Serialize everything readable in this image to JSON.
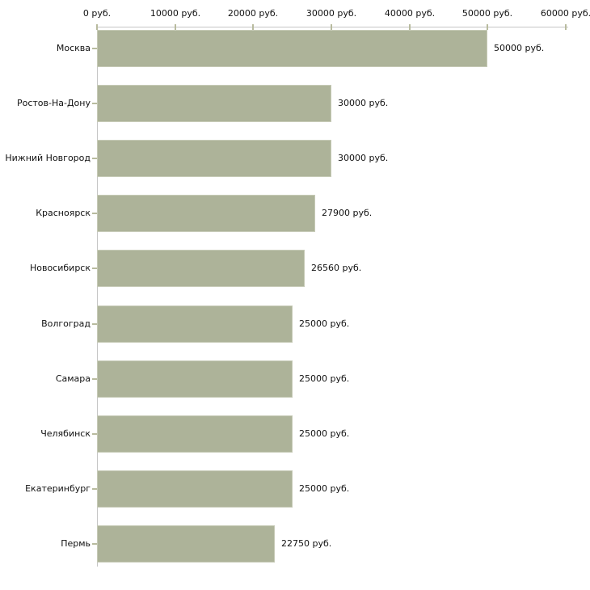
{
  "chart_data": {
    "type": "bar",
    "orientation": "horizontal",
    "title": "",
    "categories": [
      "Москва",
      "Ростов-На-Дону",
      "Нижний Новгород",
      "Красноярск",
      "Новосибирск",
      "Волгоград",
      "Самара",
      "Челябинск",
      "Екатеринбург",
      "Пермь"
    ],
    "values": [
      50000,
      30000,
      30000,
      27900,
      26560,
      25000,
      25000,
      25000,
      25000,
      22750
    ],
    "value_labels": [
      "50000 руб.",
      "30000 руб.",
      "30000 руб.",
      "27900 руб.",
      "26560 руб.",
      "25000 руб.",
      "25000 руб.",
      "25000 руб.",
      "25000 руб.",
      "22750 руб."
    ],
    "x_axis": {
      "position": "top",
      "range": [
        0,
        60000
      ],
      "ticks": [
        0,
        10000,
        20000,
        30000,
        40000,
        50000,
        60000
      ],
      "tick_labels": [
        "0 руб.",
        "10000 руб.",
        "20000 руб.",
        "30000 руб.",
        "40000 руб.",
        "50000 руб.",
        "60000 руб."
      ]
    },
    "grid": false,
    "legend": false,
    "colors": {
      "bar_fill": "#adb399",
      "bar_outline": "#c6cab6",
      "axis_line": "#c6c6c6",
      "tick_mark": "#b8bb9e",
      "text": "#111111",
      "background": "#ffffff"
    }
  }
}
